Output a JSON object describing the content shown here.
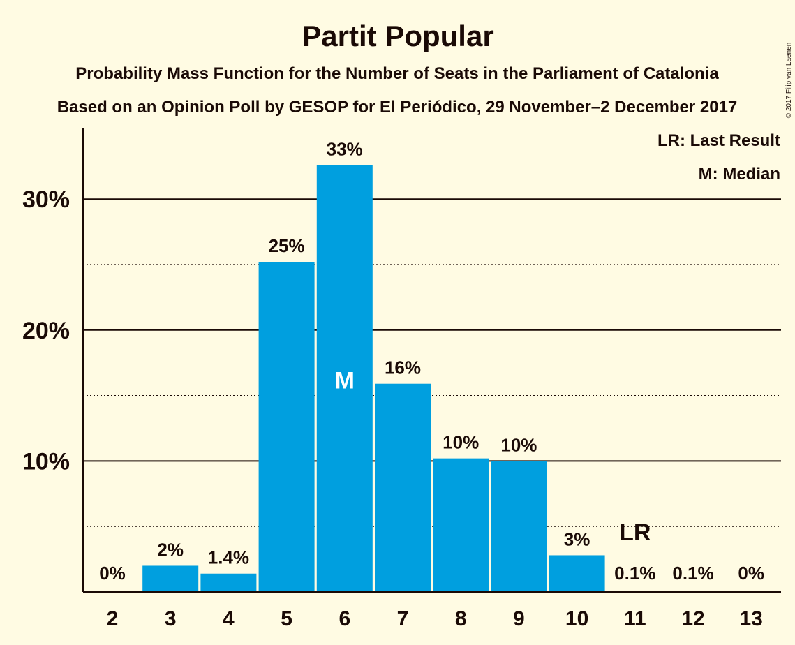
{
  "chart_data": {
    "type": "bar",
    "title": "Partit Popular",
    "subtitle_1": "Probability Mass Function for the Number of Seats in the Parliament of Catalonia",
    "subtitle_2": "Based on an Opinion Poll by GESOP for El Periódico, 29 November–2 December 2017",
    "copyright": "© 2017 Filip van Laenen",
    "categories": [
      "2",
      "3",
      "4",
      "5",
      "6",
      "7",
      "8",
      "9",
      "10",
      "11",
      "12",
      "13"
    ],
    "values": [
      0,
      2.0,
      1.4,
      25.2,
      32.6,
      15.9,
      10.2,
      10.0,
      2.8,
      0.1,
      0.1,
      0
    ],
    "data_labels": [
      "0%",
      "2%",
      "1.4%",
      "25%",
      "33%",
      "16%",
      "10%",
      "10%",
      "3%",
      "0.1%",
      "0.1%",
      "0%"
    ],
    "ylim": [
      0,
      35
    ],
    "yticks": [
      {
        "value": 10,
        "label": "10%"
      },
      {
        "value": 20,
        "label": "20%"
      },
      {
        "value": 30,
        "label": "30%"
      }
    ],
    "dotted_gridlines": [
      5,
      15,
      25
    ],
    "median": {
      "category": "6",
      "label": "M"
    },
    "last_result": {
      "category": "11",
      "label": "LR"
    },
    "legend": {
      "placement": "top-right",
      "items": [
        "LR: Last Result",
        "M: Median"
      ]
    },
    "colors": {
      "bar": "#009fdf",
      "background": "#fffbe3",
      "text": "#1a0a06",
      "median_label": "#ffffff"
    }
  }
}
